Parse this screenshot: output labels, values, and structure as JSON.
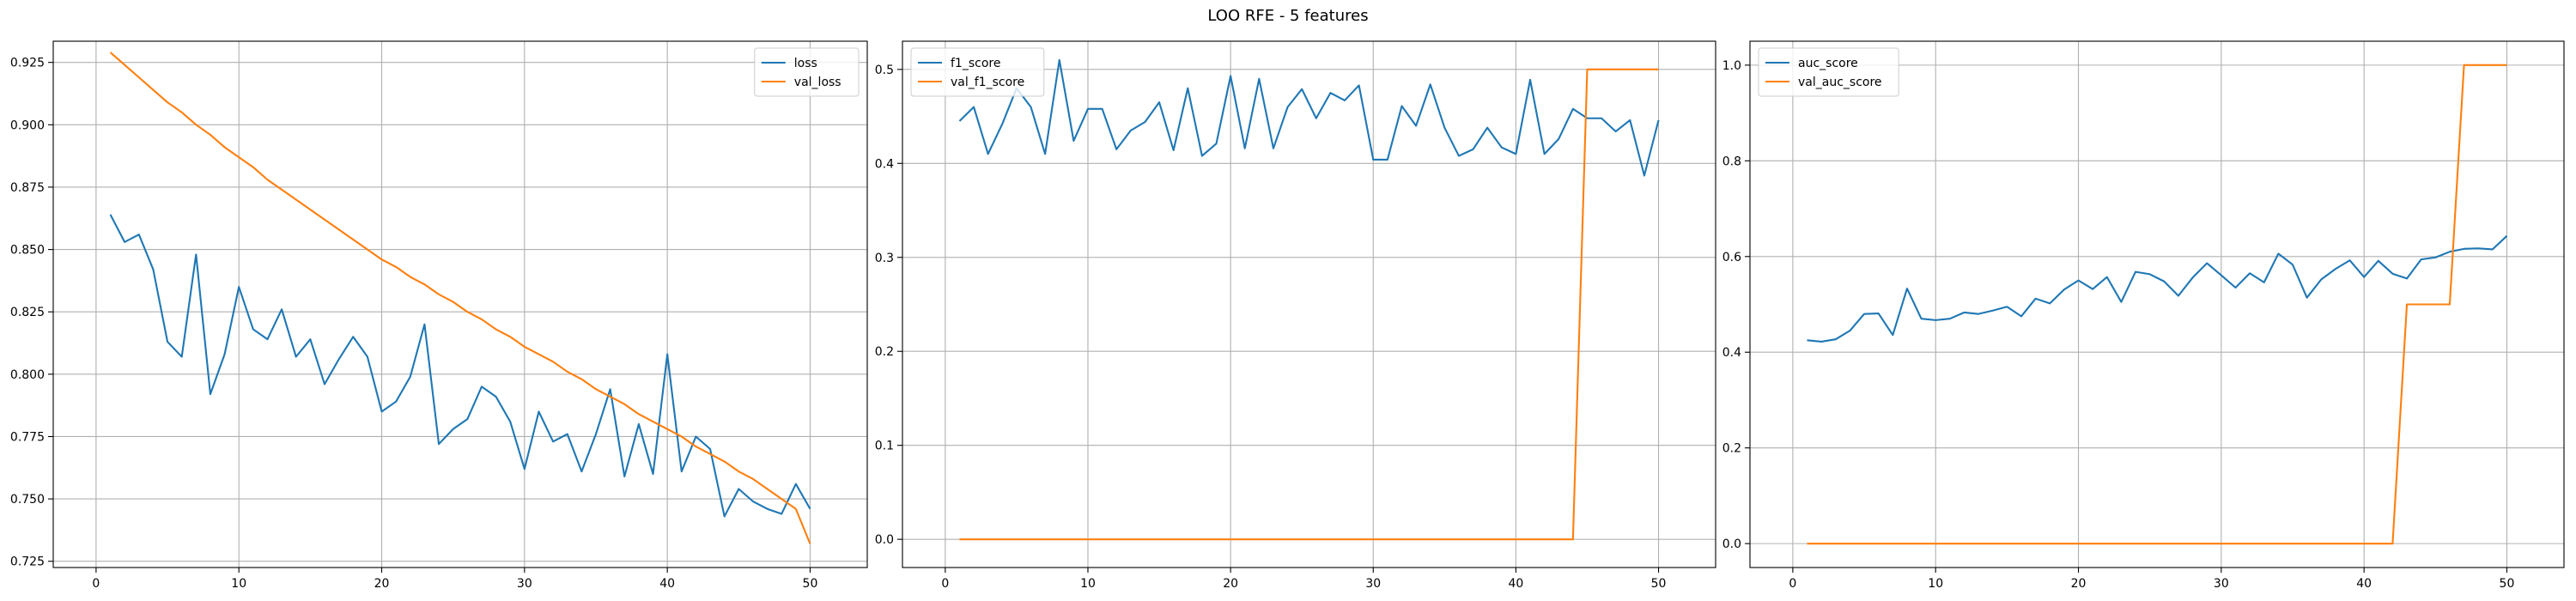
{
  "figure": {
    "title": "LOO RFE - 5 features"
  },
  "colors": {
    "series1": "#1f77b4",
    "series2": "#ff7f0e",
    "grid": "#b0b0b0",
    "axis": "#000000",
    "legend_border": "#cccccc"
  },
  "chart_data": [
    {
      "type": "line",
      "title": "",
      "xlabel": "",
      "ylabel": "",
      "xlim": [
        -3.0,
        54.0
      ],
      "ylim": [
        0.7225,
        0.9335
      ],
      "xticks": [
        0,
        10,
        20,
        30,
        40,
        50
      ],
      "yticks": [
        0.725,
        0.75,
        0.775,
        0.8,
        0.825,
        0.85,
        0.875,
        0.9,
        0.925
      ],
      "ytick_decimals": 3,
      "grid": true,
      "legend": "upper right",
      "x": [
        1,
        2,
        3,
        4,
        5,
        6,
        7,
        8,
        9,
        10,
        11,
        12,
        13,
        14,
        15,
        16,
        17,
        18,
        19,
        20,
        21,
        22,
        23,
        24,
        25,
        26,
        27,
        28,
        29,
        30,
        31,
        32,
        33,
        34,
        35,
        36,
        37,
        38,
        39,
        40,
        41,
        42,
        43,
        44,
        45,
        46,
        47,
        48,
        49,
        50
      ],
      "series": [
        {
          "name": "loss",
          "values": [
            0.864,
            0.853,
            0.856,
            0.842,
            0.813,
            0.807,
            0.848,
            0.792,
            0.808,
            0.835,
            0.818,
            0.814,
            0.826,
            0.807,
            0.814,
            0.796,
            0.806,
            0.815,
            0.807,
            0.785,
            0.789,
            0.799,
            0.82,
            0.772,
            0.778,
            0.782,
            0.795,
            0.791,
            0.781,
            0.762,
            0.785,
            0.773,
            0.776,
            0.761,
            0.776,
            0.794,
            0.759,
            0.78,
            0.76,
            0.808,
            0.761,
            0.775,
            0.77,
            0.743,
            0.754,
            0.749,
            0.746,
            0.744,
            0.756,
            0.746
          ]
        },
        {
          "name": "val_loss",
          "values": [
            0.929,
            0.924,
            0.919,
            0.914,
            0.909,
            0.905,
            0.9,
            0.896,
            0.891,
            0.887,
            0.883,
            0.878,
            0.874,
            0.87,
            0.866,
            0.862,
            0.858,
            0.854,
            0.85,
            0.846,
            0.843,
            0.839,
            0.836,
            0.832,
            0.829,
            0.825,
            0.822,
            0.818,
            0.815,
            0.811,
            0.808,
            0.805,
            0.801,
            0.798,
            0.794,
            0.791,
            0.788,
            0.784,
            0.781,
            0.778,
            0.775,
            0.771,
            0.768,
            0.765,
            0.761,
            0.758,
            0.754,
            0.75,
            0.746,
            0.732
          ]
        }
      ]
    },
    {
      "type": "line",
      "title": "",
      "xlabel": "",
      "ylabel": "",
      "xlim": [
        -3.0,
        54.0
      ],
      "ylim": [
        -0.03,
        0.53
      ],
      "xticks": [
        0,
        10,
        20,
        30,
        40,
        50
      ],
      "yticks": [
        0.0,
        0.1,
        0.2,
        0.3,
        0.4,
        0.5
      ],
      "ytick_decimals": 1,
      "grid": true,
      "legend": "upper left",
      "x": [
        1,
        2,
        3,
        4,
        5,
        6,
        7,
        8,
        9,
        10,
        11,
        12,
        13,
        14,
        15,
        16,
        17,
        18,
        19,
        20,
        21,
        22,
        23,
        24,
        25,
        26,
        27,
        28,
        29,
        30,
        31,
        32,
        33,
        34,
        35,
        36,
        37,
        38,
        39,
        40,
        41,
        42,
        43,
        44,
        45,
        46,
        47,
        48,
        49,
        50
      ],
      "series": [
        {
          "name": "f1_score",
          "values": [
            0.445,
            0.46,
            0.41,
            0.442,
            0.48,
            0.46,
            0.41,
            0.51,
            0.424,
            0.458,
            0.458,
            0.415,
            0.435,
            0.444,
            0.465,
            0.414,
            0.48,
            0.408,
            0.421,
            0.493,
            0.416,
            0.49,
            0.416,
            0.46,
            0.479,
            0.448,
            0.475,
            0.467,
            0.483,
            0.404,
            0.404,
            0.461,
            0.44,
            0.484,
            0.438,
            0.408,
            0.415,
            0.438,
            0.417,
            0.41,
            0.489,
            0.41,
            0.426,
            0.458,
            0.448,
            0.448,
            0.434,
            0.446,
            0.387,
            0.446
          ]
        },
        {
          "name": "val_f1_score",
          "values": [
            0.0,
            0.0,
            0.0,
            0.0,
            0.0,
            0.0,
            0.0,
            0.0,
            0.0,
            0.0,
            0.0,
            0.0,
            0.0,
            0.0,
            0.0,
            0.0,
            0.0,
            0.0,
            0.0,
            0.0,
            0.0,
            0.0,
            0.0,
            0.0,
            0.0,
            0.0,
            0.0,
            0.0,
            0.0,
            0.0,
            0.0,
            0.0,
            0.0,
            0.0,
            0.0,
            0.0,
            0.0,
            0.0,
            0.0,
            0.0,
            0.0,
            0.0,
            0.0,
            0.0,
            0.5,
            0.5,
            0.5,
            0.5,
            0.5,
            0.5
          ]
        }
      ]
    },
    {
      "type": "line",
      "title": "",
      "xlabel": "",
      "ylabel": "",
      "xlim": [
        -3.0,
        54.0
      ],
      "ylim": [
        -0.05,
        1.05
      ],
      "xticks": [
        0,
        10,
        20,
        30,
        40,
        50
      ],
      "yticks": [
        0.0,
        0.2,
        0.4,
        0.6,
        0.8,
        1.0
      ],
      "ytick_decimals": 1,
      "grid": true,
      "legend": "upper left",
      "x": [
        1,
        2,
        3,
        4,
        5,
        6,
        7,
        8,
        9,
        10,
        11,
        12,
        13,
        14,
        15,
        16,
        17,
        18,
        19,
        20,
        21,
        22,
        23,
        24,
        25,
        26,
        27,
        28,
        29,
        30,
        31,
        32,
        33,
        34,
        35,
        36,
        37,
        38,
        39,
        40,
        41,
        42,
        43,
        44,
        45,
        46,
        47,
        48,
        49,
        50
      ],
      "series": [
        {
          "name": "auc_score",
          "values": [
            0.425,
            0.422,
            0.427,
            0.445,
            0.48,
            0.481,
            0.436,
            0.533,
            0.47,
            0.467,
            0.47,
            0.483,
            0.48,
            0.487,
            0.495,
            0.475,
            0.512,
            0.502,
            0.531,
            0.55,
            0.532,
            0.557,
            0.505,
            0.568,
            0.563,
            0.548,
            0.518,
            0.556,
            0.586,
            0.561,
            0.535,
            0.565,
            0.546,
            0.606,
            0.583,
            0.514,
            0.552,
            0.574,
            0.592,
            0.557,
            0.591,
            0.564,
            0.554,
            0.594,
            0.598,
            0.61,
            0.616,
            0.617,
            0.615,
            0.643
          ]
        },
        {
          "name": "val_auc_score",
          "values": [
            0.0,
            0.0,
            0.0,
            0.0,
            0.0,
            0.0,
            0.0,
            0.0,
            0.0,
            0.0,
            0.0,
            0.0,
            0.0,
            0.0,
            0.0,
            0.0,
            0.0,
            0.0,
            0.0,
            0.0,
            0.0,
            0.0,
            0.0,
            0.0,
            0.0,
            0.0,
            0.0,
            0.0,
            0.0,
            0.0,
            0.0,
            0.0,
            0.0,
            0.0,
            0.0,
            0.0,
            0.0,
            0.0,
            0.0,
            0.0,
            0.0,
            0.0,
            0.5,
            0.5,
            0.5,
            0.5,
            1.0,
            1.0,
            1.0,
            1.0
          ]
        }
      ]
    }
  ]
}
